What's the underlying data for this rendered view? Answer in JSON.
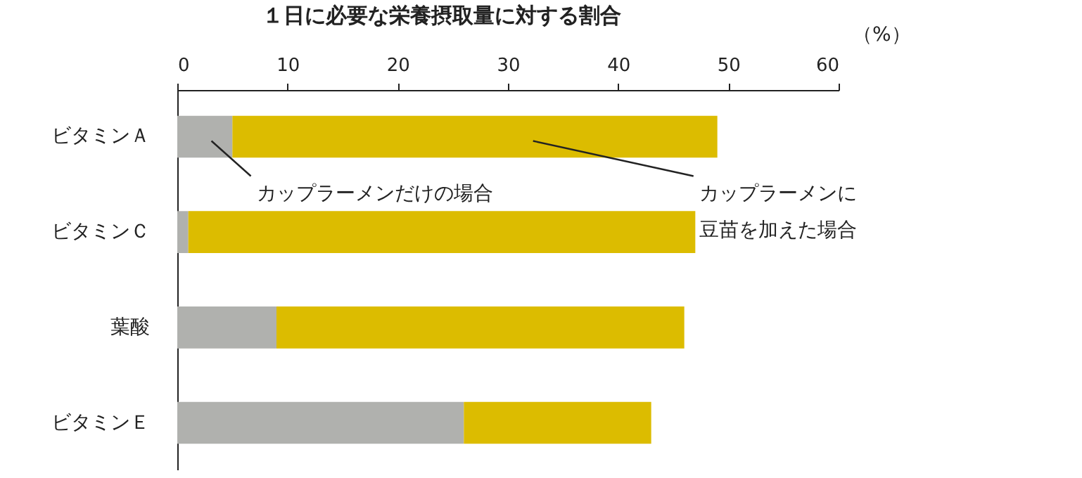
{
  "chart_data": {
    "type": "bar",
    "orientation": "horizontal",
    "stacked": true,
    "title": "１日に必要な栄養摂取量に対する割合",
    "xlabel": "（%）",
    "categories": [
      "ビタミンＡ",
      "ビタミンＣ",
      "葉酸",
      "ビタミンＥ"
    ],
    "series": [
      {
        "name": "カップラーメンだけの場合",
        "color": "#b0b1ae",
        "values": [
          5,
          1,
          9,
          26
        ]
      },
      {
        "name": "カップラーメンに豆苗を加えた場合",
        "color": "#dcbc00",
        "values": [
          44,
          46,
          37,
          17
        ]
      }
    ],
    "xlim": [
      0,
      60
    ],
    "xticks": [
      0,
      10,
      20,
      30,
      40,
      50,
      60
    ],
    "grid": false,
    "legend": false
  }
}
